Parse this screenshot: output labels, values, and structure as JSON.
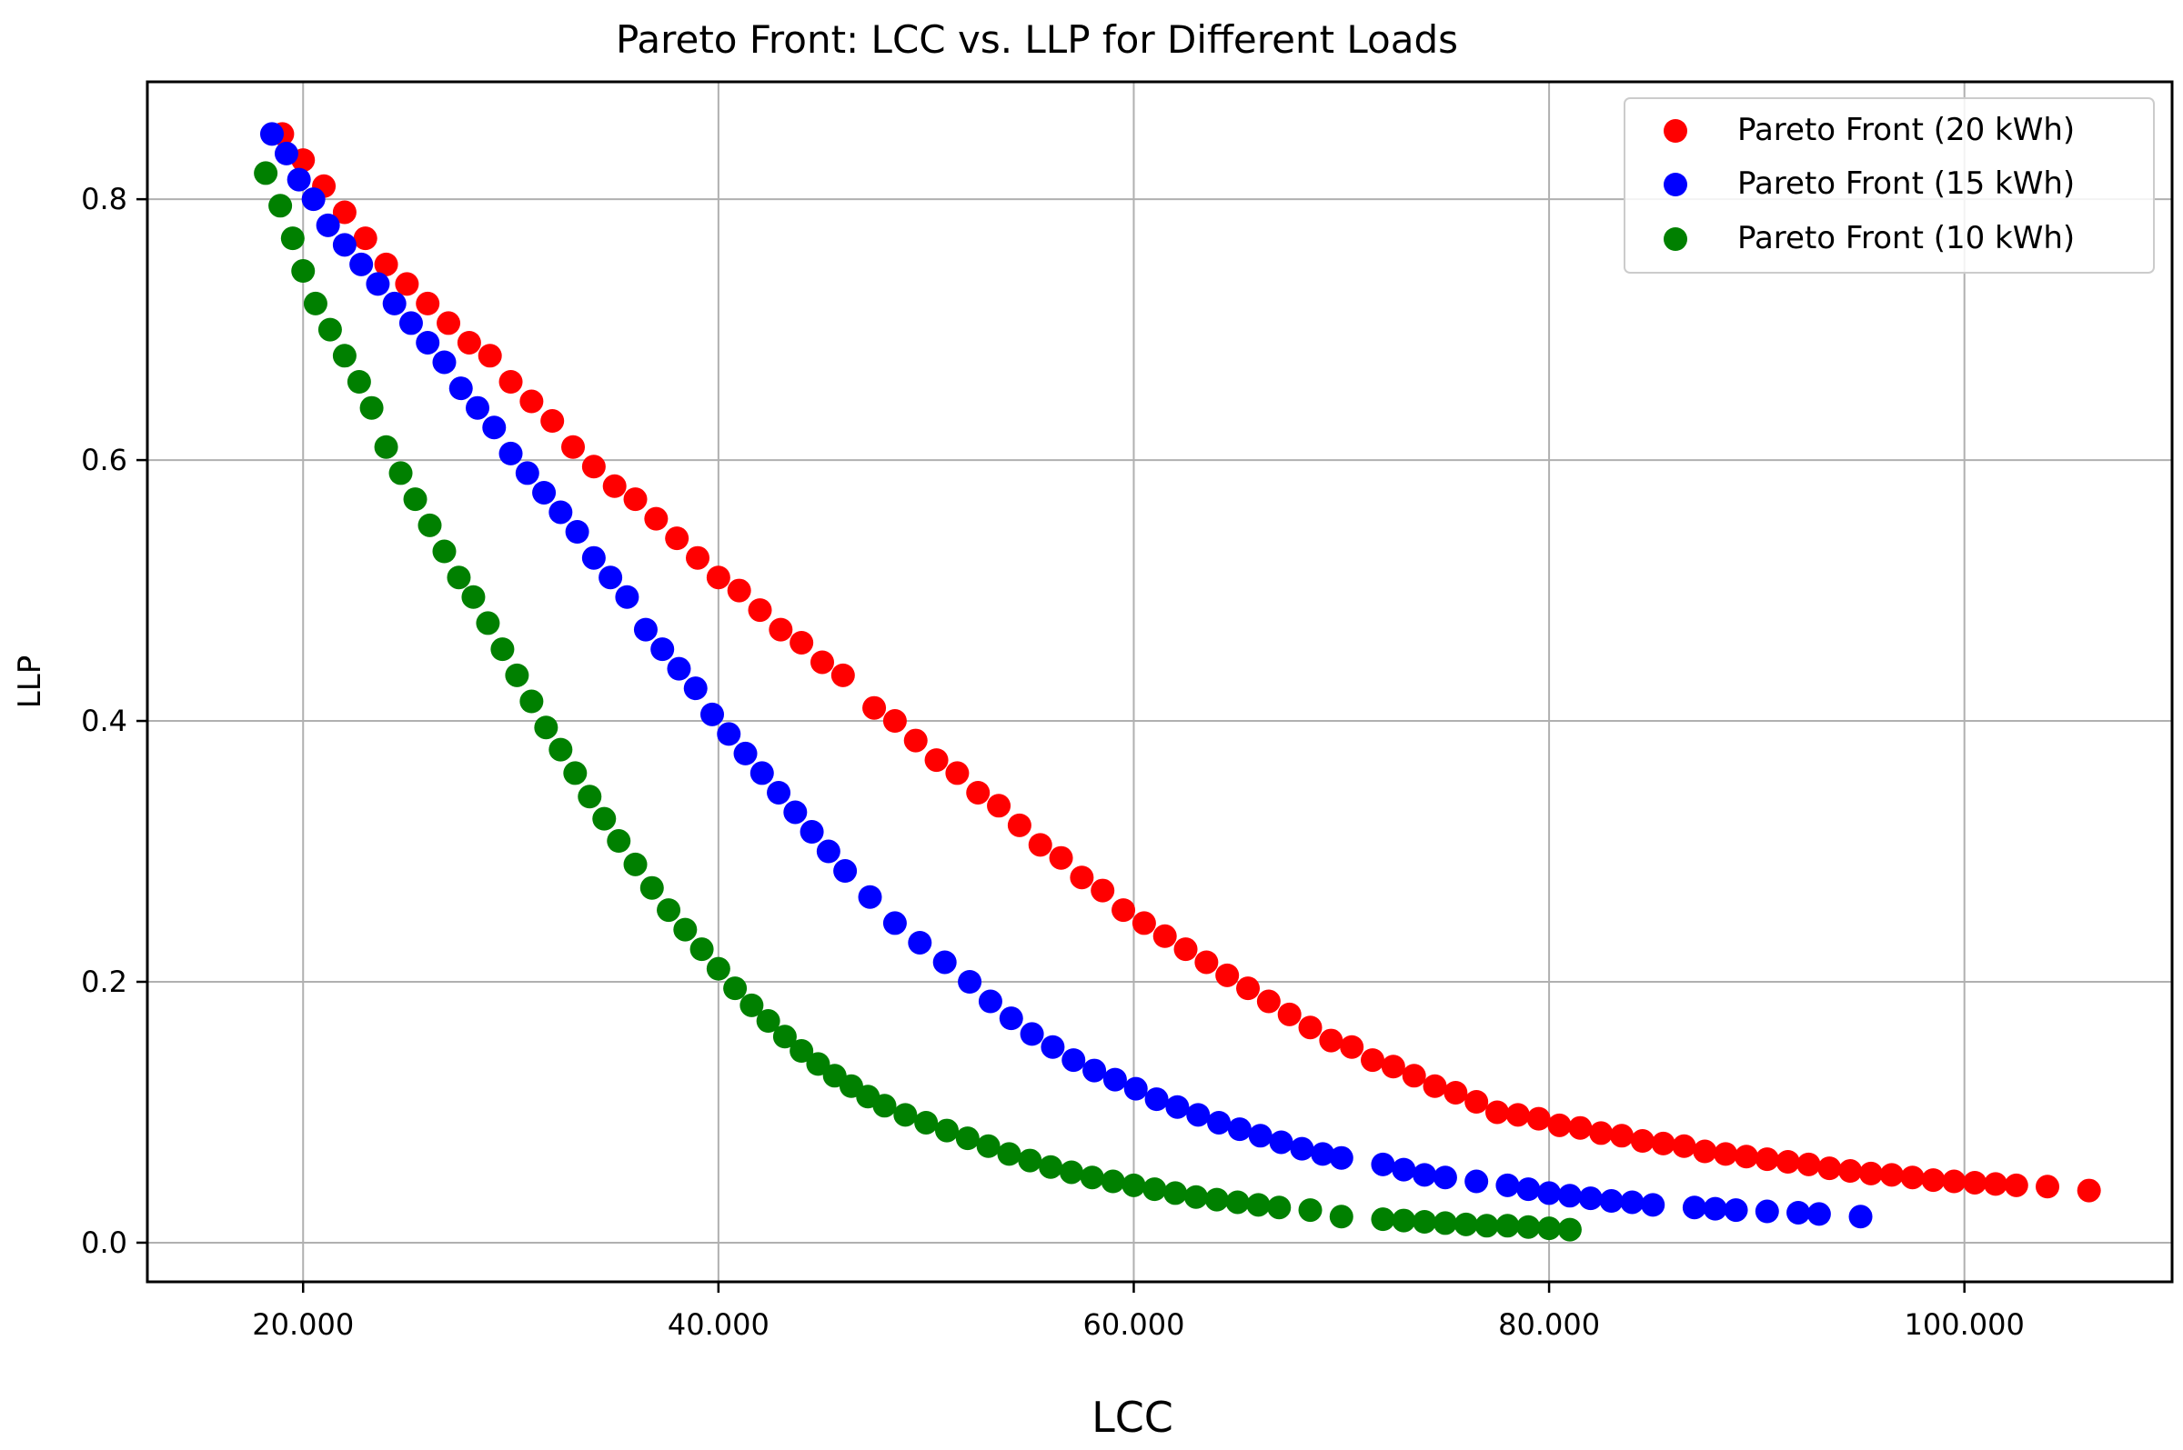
{
  "chart_data": {
    "type": "scatter",
    "title": "Pareto Front: LCC vs. LLP for Different Loads",
    "xlabel": "LCC",
    "ylabel": "LLP",
    "xlim": [
      12500,
      110000
    ],
    "ylim": [
      -0.03,
      0.89
    ],
    "xticks": [
      20000,
      40000,
      60000,
      80000,
      100000
    ],
    "xtick_labels": [
      "20.000",
      "40.000",
      "60.000",
      "80.000",
      "100.000"
    ],
    "yticks": [
      0.0,
      0.2,
      0.4,
      0.6,
      0.8
    ],
    "ytick_labels": [
      "0.0",
      "0.2",
      "0.4",
      "0.6",
      "0.8"
    ],
    "grid": true,
    "legend_position": "top-right",
    "series": [
      {
        "name": "Pareto Front (20 kWh)",
        "color": "#ff0000",
        "points": [
          [
            19000,
            0.85
          ],
          [
            20000,
            0.83
          ],
          [
            21000,
            0.81
          ],
          [
            22000,
            0.79
          ],
          [
            23000,
            0.77
          ],
          [
            24000,
            0.75
          ],
          [
            25000,
            0.735
          ],
          [
            26000,
            0.72
          ],
          [
            27000,
            0.705
          ],
          [
            28000,
            0.69
          ],
          [
            29000,
            0.68
          ],
          [
            30000,
            0.66
          ],
          [
            31000,
            0.645
          ],
          [
            32000,
            0.63
          ],
          [
            33000,
            0.61
          ],
          [
            34000,
            0.595
          ],
          [
            35000,
            0.58
          ],
          [
            36000,
            0.57
          ],
          [
            37000,
            0.555
          ],
          [
            38000,
            0.54
          ],
          [
            39000,
            0.525
          ],
          [
            40000,
            0.51
          ],
          [
            41000,
            0.5
          ],
          [
            42000,
            0.485
          ],
          [
            43000,
            0.47
          ],
          [
            44000,
            0.46
          ],
          [
            45000,
            0.445
          ],
          [
            46000,
            0.435
          ],
          [
            47500,
            0.41
          ],
          [
            48500,
            0.4
          ],
          [
            49500,
            0.385
          ],
          [
            50500,
            0.37
          ],
          [
            51500,
            0.36
          ],
          [
            52500,
            0.345
          ],
          [
            53500,
            0.335
          ],
          [
            54500,
            0.32
          ],
          [
            55500,
            0.305
          ],
          [
            56500,
            0.295
          ],
          [
            57500,
            0.28
          ],
          [
            58500,
            0.27
          ],
          [
            59500,
            0.255
          ],
          [
            60500,
            0.245
          ],
          [
            61500,
            0.235
          ],
          [
            62500,
            0.225
          ],
          [
            63500,
            0.215
          ],
          [
            64500,
            0.205
          ],
          [
            65500,
            0.195
          ],
          [
            66500,
            0.185
          ],
          [
            67500,
            0.175
          ],
          [
            68500,
            0.165
          ],
          [
            69500,
            0.155
          ],
          [
            70500,
            0.15
          ],
          [
            71500,
            0.14
          ],
          [
            72500,
            0.135
          ],
          [
            73500,
            0.128
          ],
          [
            74500,
            0.12
          ],
          [
            75500,
            0.115
          ],
          [
            76500,
            0.108
          ],
          [
            77500,
            0.1
          ],
          [
            78500,
            0.098
          ],
          [
            79500,
            0.095
          ],
          [
            80500,
            0.09
          ],
          [
            81500,
            0.088
          ],
          [
            82500,
            0.084
          ],
          [
            83500,
            0.082
          ],
          [
            84500,
            0.078
          ],
          [
            85500,
            0.076
          ],
          [
            86500,
            0.074
          ],
          [
            87500,
            0.07
          ],
          [
            88500,
            0.068
          ],
          [
            89500,
            0.066
          ],
          [
            90500,
            0.064
          ],
          [
            91500,
            0.062
          ],
          [
            92500,
            0.06
          ],
          [
            93500,
            0.057
          ],
          [
            94500,
            0.055
          ],
          [
            95500,
            0.053
          ],
          [
            96500,
            0.052
          ],
          [
            97500,
            0.05
          ],
          [
            98500,
            0.048
          ],
          [
            99500,
            0.047
          ],
          [
            100500,
            0.046
          ],
          [
            101500,
            0.045
          ],
          [
            102500,
            0.044
          ],
          [
            104000,
            0.043
          ],
          [
            106000,
            0.04
          ]
        ]
      },
      {
        "name": "Pareto Front (15 kWh)",
        "color": "#0000ff",
        "points": [
          [
            18500,
            0.85
          ],
          [
            19200,
            0.835
          ],
          [
            19800,
            0.815
          ],
          [
            20500,
            0.8
          ],
          [
            21200,
            0.78
          ],
          [
            22000,
            0.765
          ],
          [
            22800,
            0.75
          ],
          [
            23600,
            0.735
          ],
          [
            24400,
            0.72
          ],
          [
            25200,
            0.705
          ],
          [
            26000,
            0.69
          ],
          [
            26800,
            0.675
          ],
          [
            27600,
            0.655
          ],
          [
            28400,
            0.64
          ],
          [
            29200,
            0.625
          ],
          [
            30000,
            0.605
          ],
          [
            30800,
            0.59
          ],
          [
            31600,
            0.575
          ],
          [
            32400,
            0.56
          ],
          [
            33200,
            0.545
          ],
          [
            34000,
            0.525
          ],
          [
            34800,
            0.51
          ],
          [
            35600,
            0.495
          ],
          [
            36500,
            0.47
          ],
          [
            37300,
            0.455
          ],
          [
            38100,
            0.44
          ],
          [
            38900,
            0.425
          ],
          [
            39700,
            0.405
          ],
          [
            40500,
            0.39
          ],
          [
            41300,
            0.375
          ],
          [
            42100,
            0.36
          ],
          [
            42900,
            0.345
          ],
          [
            43700,
            0.33
          ],
          [
            44500,
            0.315
          ],
          [
            45300,
            0.3
          ],
          [
            46100,
            0.285
          ],
          [
            47300,
            0.265
          ],
          [
            48500,
            0.245
          ],
          [
            49700,
            0.23
          ],
          [
            50900,
            0.215
          ],
          [
            52100,
            0.2
          ],
          [
            53100,
            0.185
          ],
          [
            54100,
            0.172
          ],
          [
            55100,
            0.16
          ],
          [
            56100,
            0.15
          ],
          [
            57100,
            0.14
          ],
          [
            58100,
            0.132
          ],
          [
            59100,
            0.125
          ],
          [
            60100,
            0.118
          ],
          [
            61100,
            0.11
          ],
          [
            62100,
            0.104
          ],
          [
            63100,
            0.098
          ],
          [
            64100,
            0.092
          ],
          [
            65100,
            0.087
          ],
          [
            66100,
            0.082
          ],
          [
            67100,
            0.077
          ],
          [
            68100,
            0.072
          ],
          [
            69100,
            0.068
          ],
          [
            70000,
            0.065
          ],
          [
            72000,
            0.06
          ],
          [
            73000,
            0.056
          ],
          [
            74000,
            0.052
          ],
          [
            75000,
            0.05
          ],
          [
            76500,
            0.047
          ],
          [
            78000,
            0.044
          ],
          [
            79000,
            0.041
          ],
          [
            80000,
            0.038
          ],
          [
            81000,
            0.036
          ],
          [
            82000,
            0.034
          ],
          [
            83000,
            0.032
          ],
          [
            84000,
            0.031
          ],
          [
            85000,
            0.029
          ],
          [
            87000,
            0.027
          ],
          [
            88000,
            0.026
          ],
          [
            89000,
            0.025
          ],
          [
            90500,
            0.024
          ],
          [
            92000,
            0.023
          ],
          [
            93000,
            0.022
          ],
          [
            95000,
            0.02
          ]
        ]
      },
      {
        "name": "Pareto Front (10 kWh)",
        "color": "#008000",
        "points": [
          [
            18200,
            0.82
          ],
          [
            18900,
            0.795
          ],
          [
            19500,
            0.77
          ],
          [
            20000,
            0.745
          ],
          [
            20600,
            0.72
          ],
          [
            21300,
            0.7
          ],
          [
            22000,
            0.68
          ],
          [
            22700,
            0.66
          ],
          [
            23300,
            0.64
          ],
          [
            24000,
            0.61
          ],
          [
            24700,
            0.59
          ],
          [
            25400,
            0.57
          ],
          [
            26100,
            0.55
          ],
          [
            26800,
            0.53
          ],
          [
            27500,
            0.51
          ],
          [
            28200,
            0.495
          ],
          [
            28900,
            0.475
          ],
          [
            29600,
            0.455
          ],
          [
            30300,
            0.435
          ],
          [
            31000,
            0.415
          ],
          [
            31700,
            0.395
          ],
          [
            32400,
            0.378
          ],
          [
            33100,
            0.36
          ],
          [
            33800,
            0.342
          ],
          [
            34500,
            0.325
          ],
          [
            35200,
            0.308
          ],
          [
            36000,
            0.29
          ],
          [
            36800,
            0.272
          ],
          [
            37600,
            0.255
          ],
          [
            38400,
            0.24
          ],
          [
            39200,
            0.225
          ],
          [
            40000,
            0.21
          ],
          [
            40800,
            0.195
          ],
          [
            41600,
            0.182
          ],
          [
            42400,
            0.17
          ],
          [
            43200,
            0.158
          ],
          [
            44000,
            0.147
          ],
          [
            44800,
            0.137
          ],
          [
            45600,
            0.128
          ],
          [
            46400,
            0.12
          ],
          [
            47200,
            0.112
          ],
          [
            48000,
            0.105
          ],
          [
            49000,
            0.098
          ],
          [
            50000,
            0.092
          ],
          [
            51000,
            0.086
          ],
          [
            52000,
            0.08
          ],
          [
            53000,
            0.074
          ],
          [
            54000,
            0.068
          ],
          [
            55000,
            0.063
          ],
          [
            56000,
            0.058
          ],
          [
            57000,
            0.054
          ],
          [
            58000,
            0.05
          ],
          [
            59000,
            0.047
          ],
          [
            60000,
            0.044
          ],
          [
            61000,
            0.041
          ],
          [
            62000,
            0.038
          ],
          [
            63000,
            0.035
          ],
          [
            64000,
            0.033
          ],
          [
            65000,
            0.031
          ],
          [
            66000,
            0.029
          ],
          [
            67000,
            0.027
          ],
          [
            68500,
            0.025
          ],
          [
            70000,
            0.02
          ],
          [
            72000,
            0.018
          ],
          [
            73000,
            0.017
          ],
          [
            74000,
            0.016
          ],
          [
            75000,
            0.015
          ],
          [
            76000,
            0.014
          ],
          [
            77000,
            0.013
          ],
          [
            78000,
            0.013
          ],
          [
            79000,
            0.012
          ],
          [
            80000,
            0.011
          ],
          [
            81000,
            0.01
          ]
        ]
      }
    ]
  }
}
